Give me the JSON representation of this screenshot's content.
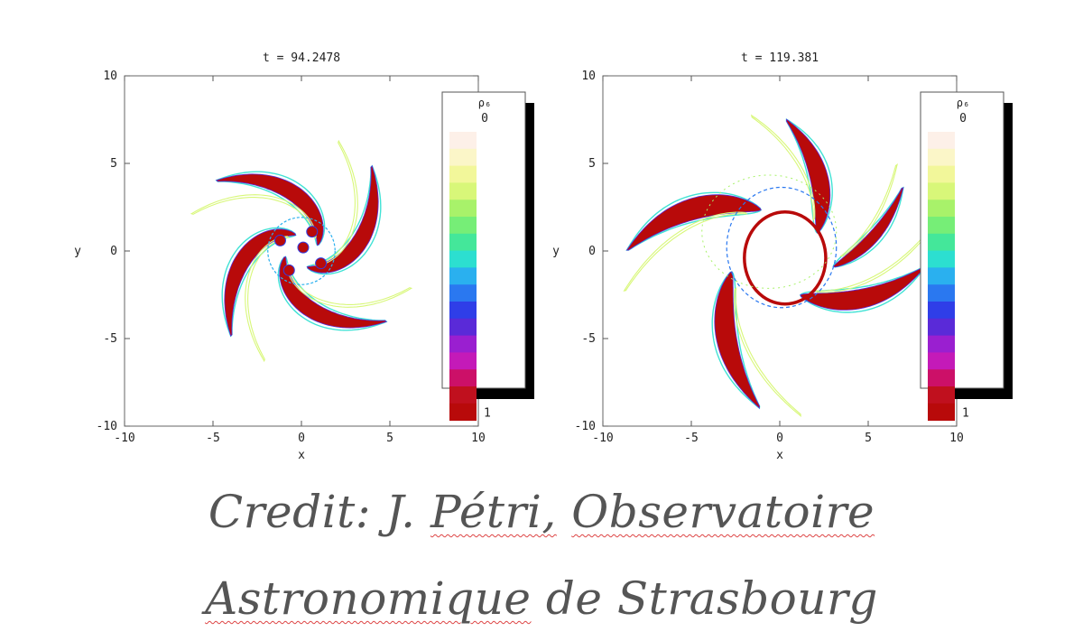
{
  "chart_data": [
    {
      "type": "heatmap",
      "title": "t = 94.2478",
      "xlabel": "x",
      "ylabel": "y",
      "xlim": [
        -10,
        10
      ],
      "ylim": [
        -10,
        10
      ],
      "x_ticks": [
        "-10",
        "-5",
        "0",
        "5",
        "10"
      ],
      "y_ticks": [
        "10",
        "5",
        "0",
        "-5",
        "-10"
      ],
      "colorbar": {
        "label": "ρ₆",
        "min_label": "0",
        "max_label": "1"
      },
      "pattern": "four spiral arms around a compact core"
    },
    {
      "type": "heatmap",
      "title": "t = 119.381",
      "xlabel": "x",
      "ylabel": "y",
      "xlim": [
        -10,
        10
      ],
      "ylim": [
        -10,
        10
      ],
      "x_ticks": [
        "-10",
        "-5",
        "0",
        "5",
        "10"
      ],
      "y_ticks": [
        "10",
        "5",
        "0",
        "-5",
        "-10"
      ],
      "colorbar": {
        "label": "ρ₆",
        "min_label": "0",
        "max_label": "1"
      },
      "pattern": "extended spiral arms with a ring-like inner structure"
    }
  ],
  "colorscale": [
    "#fdf0e8",
    "#fbf6c8",
    "#f2f79a",
    "#d8f779",
    "#a8f26a",
    "#76ee77",
    "#44e79a",
    "#2cdfd0",
    "#2ab0ef",
    "#2a78f0",
    "#2f3ee8",
    "#5a2ad8",
    "#9a1fd0",
    "#c41ab8",
    "#cc1068",
    "#c0101e",
    "#b80a0a"
  ],
  "credit": {
    "line1": {
      "w1": "Credit:",
      "w2": "J.",
      "w3": "Pétri,",
      "w4": "Observatoire"
    },
    "line2": {
      "w1": "Astronomique",
      "w2": "de",
      "w3": "Strasbourg"
    }
  }
}
